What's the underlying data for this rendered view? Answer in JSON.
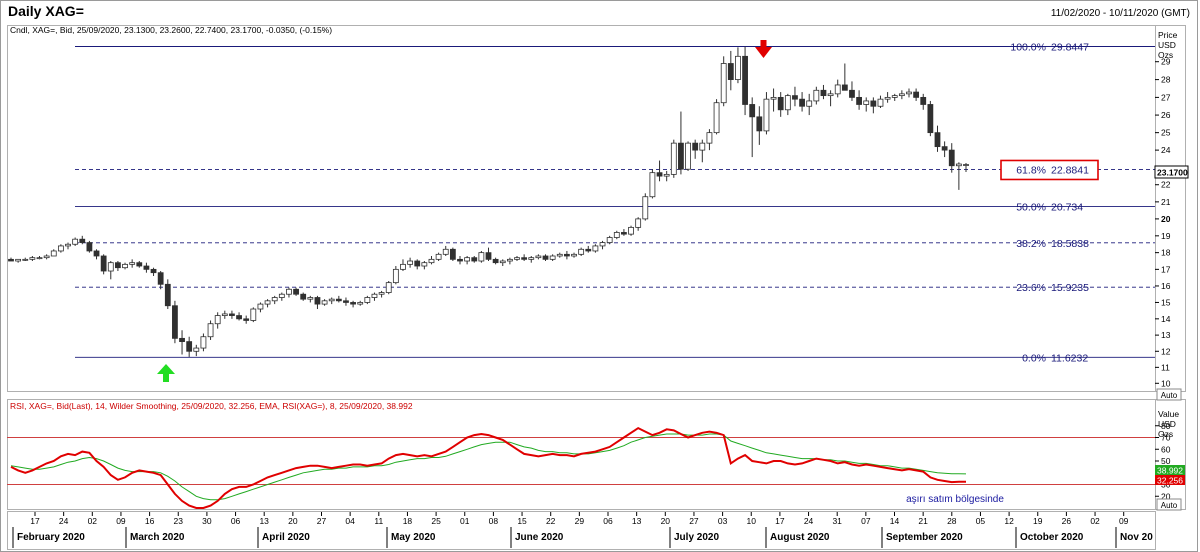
{
  "header": {
    "title": "Daily XAG=",
    "date_range": "11/02/2020 - 10/11/2020 (GMT)"
  },
  "price_panel": {
    "legend": "Cndl, XAG=, Bid, 25/09/2020, 23.1300, 23.2600, 22.7400, 23.1700, -0.0350, (-0.15%)",
    "axis_title": [
      "Price",
      "USD",
      "Ozs"
    ],
    "last_price_label": "23.1700",
    "auto_label": "Auto"
  },
  "rsi_panel": {
    "legend": "RSI, XAG=, Bid(Last), 14, Wilder Smoothing, 25/09/2020, 32.256, EMA, RSI(XAG=), 8, 25/09/2020, 38.992",
    "axis_title": [
      "Value",
      "USD",
      "Ozs"
    ],
    "ema_label": "38.992",
    "rsi_label": "32.256",
    "annotation": "aşırı satım bölgesinde",
    "auto_label": "Auto"
  },
  "colors": {
    "fib_line": "#1a1a7a",
    "candle_up": "#ffffff",
    "candle_down": "#303030",
    "rsi_line": "#e00000",
    "ema_line": "#22aa22",
    "band_line": "#d04040",
    "arrow_down": "#e00000",
    "arrow_up": "#22dd22",
    "highlight_box": "#e00000",
    "text_fib": "#1a1a7a"
  },
  "chart_data": {
    "type": "candlestick",
    "instrument": "XAG=",
    "y_ticks": [
      10,
      11,
      12,
      13,
      14,
      15,
      16,
      17,
      18,
      19,
      20,
      21,
      22,
      24,
      25,
      26,
      27,
      28,
      29
    ],
    "ylim": [
      9.5,
      31
    ],
    "fib_levels": [
      {
        "label": "100.0%",
        "value_label": "29.8447",
        "value": 29.8447,
        "style": "solid",
        "highlight": false
      },
      {
        "label": "61.8%",
        "value_label": "22.8841",
        "value": 22.8841,
        "style": "dashed",
        "highlight": true
      },
      {
        "label": "50.0%",
        "value_label": "20.734",
        "value": 20.734,
        "style": "solid",
        "highlight": false
      },
      {
        "label": "38.2%",
        "value_label": "18.5838",
        "value": 18.5838,
        "style": "dashed",
        "highlight": false
      },
      {
        "label": "23.6%",
        "value_label": "15.9235",
        "value": 15.9235,
        "style": "dashed",
        "highlight": false
      },
      {
        "label": "0.0%",
        "value_label": "11.6232",
        "value": 11.6232,
        "style": "solid",
        "highlight": false
      }
    ],
    "x_day_ticks": [
      "17",
      "24",
      "02",
      "09",
      "16",
      "23",
      "30",
      "06",
      "13",
      "20",
      "27",
      "04",
      "11",
      "18",
      "25",
      "01",
      "08",
      "15",
      "22",
      "29",
      "06",
      "13",
      "20",
      "27",
      "03",
      "10",
      "17",
      "24",
      "31",
      "07",
      "14",
      "21",
      "28",
      "05",
      "12",
      "19",
      "26",
      "02",
      "09"
    ],
    "x_month_labels": [
      "February 2020",
      "March 2020",
      "April 2020",
      "May 2020",
      "June 2020",
      "July 2020",
      "August 2020",
      "September 2020",
      "October 2020",
      "Nov 20"
    ],
    "candles": [
      [
        17.6,
        17.7,
        17.5,
        17.5
      ],
      [
        17.5,
        17.6,
        17.4,
        17.6
      ],
      [
        17.6,
        17.7,
        17.5,
        17.6
      ],
      [
        17.6,
        17.8,
        17.5,
        17.7
      ],
      [
        17.7,
        17.8,
        17.6,
        17.7
      ],
      [
        17.7,
        17.9,
        17.6,
        17.8
      ],
      [
        17.8,
        18.2,
        17.8,
        18.1
      ],
      [
        18.1,
        18.5,
        18.0,
        18.4
      ],
      [
        18.4,
        18.6,
        18.2,
        18.5
      ],
      [
        18.5,
        18.9,
        18.4,
        18.8
      ],
      [
        18.8,
        19.0,
        18.5,
        18.6
      ],
      [
        18.6,
        18.7,
        18.0,
        18.1
      ],
      [
        18.1,
        18.2,
        17.6,
        17.8
      ],
      [
        17.8,
        17.9,
        16.7,
        16.9
      ],
      [
        16.9,
        17.5,
        16.4,
        17.4
      ],
      [
        17.4,
        17.5,
        16.9,
        17.1
      ],
      [
        17.1,
        17.4,
        17.0,
        17.3
      ],
      [
        17.3,
        17.6,
        17.1,
        17.4
      ],
      [
        17.4,
        17.5,
        17.1,
        17.2
      ],
      [
        17.2,
        17.4,
        16.8,
        17.0
      ],
      [
        17.0,
        17.1,
        16.6,
        16.8
      ],
      [
        16.8,
        16.9,
        15.8,
        16.1
      ],
      [
        16.1,
        16.4,
        14.6,
        14.8
      ],
      [
        14.8,
        15.1,
        12.5,
        12.8
      ],
      [
        12.8,
        13.3,
        11.8,
        12.6
      ],
      [
        12.6,
        12.9,
        11.65,
        12.0
      ],
      [
        12.0,
        12.4,
        11.7,
        12.2
      ],
      [
        12.2,
        13.1,
        12.0,
        12.9
      ],
      [
        12.9,
        13.9,
        12.7,
        13.7
      ],
      [
        13.7,
        14.4,
        13.4,
        14.2
      ],
      [
        14.2,
        14.5,
        14.0,
        14.3
      ],
      [
        14.3,
        14.5,
        14.0,
        14.2
      ],
      [
        14.2,
        14.4,
        13.9,
        14.0
      ],
      [
        14.0,
        14.2,
        13.7,
        13.9
      ],
      [
        13.9,
        14.7,
        13.8,
        14.6
      ],
      [
        14.6,
        15.0,
        14.4,
        14.9
      ],
      [
        14.9,
        15.2,
        14.7,
        15.1
      ],
      [
        15.1,
        15.4,
        14.9,
        15.3
      ],
      [
        15.3,
        15.6,
        15.1,
        15.5
      ],
      [
        15.5,
        15.9,
        15.3,
        15.8
      ],
      [
        15.8,
        15.9,
        15.4,
        15.5
      ],
      [
        15.5,
        15.6,
        15.1,
        15.2
      ],
      [
        15.2,
        15.4,
        15.0,
        15.3
      ],
      [
        15.3,
        15.4,
        14.6,
        14.9
      ],
      [
        14.9,
        15.2,
        14.8,
        15.1
      ],
      [
        15.1,
        15.3,
        14.9,
        15.2
      ],
      [
        15.2,
        15.4,
        15.0,
        15.1
      ],
      [
        15.1,
        15.3,
        14.8,
        15.0
      ],
      [
        15.0,
        15.1,
        14.7,
        14.9
      ],
      [
        14.9,
        15.1,
        14.8,
        15.0
      ],
      [
        15.0,
        15.4,
        14.9,
        15.3
      ],
      [
        15.3,
        15.6,
        15.1,
        15.5
      ],
      [
        15.5,
        15.7,
        15.3,
        15.6
      ],
      [
        15.6,
        16.3,
        15.5,
        16.2
      ],
      [
        16.2,
        17.2,
        16.1,
        17.0
      ],
      [
        17.0,
        17.6,
        16.9,
        17.3
      ],
      [
        17.3,
        17.7,
        17.1,
        17.5
      ],
      [
        17.5,
        17.6,
        17.0,
        17.2
      ],
      [
        17.2,
        17.5,
        17.0,
        17.4
      ],
      [
        17.4,
        17.8,
        17.3,
        17.6
      ],
      [
        17.6,
        18.0,
        17.5,
        17.9
      ],
      [
        17.9,
        18.4,
        17.8,
        18.2
      ],
      [
        18.2,
        18.3,
        17.5,
        17.6
      ],
      [
        17.6,
        17.8,
        17.3,
        17.5
      ],
      [
        17.5,
        17.8,
        17.3,
        17.7
      ],
      [
        17.7,
        17.8,
        17.4,
        17.5
      ],
      [
        17.5,
        18.1,
        17.4,
        18.0
      ],
      [
        18.0,
        18.3,
        17.5,
        17.6
      ],
      [
        17.6,
        17.7,
        17.3,
        17.4
      ],
      [
        17.4,
        17.6,
        17.2,
        17.5
      ],
      [
        17.5,
        17.7,
        17.3,
        17.6
      ],
      [
        17.6,
        17.8,
        17.5,
        17.7
      ],
      [
        17.7,
        17.9,
        17.5,
        17.6
      ],
      [
        17.6,
        17.8,
        17.4,
        17.7
      ],
      [
        17.7,
        17.9,
        17.6,
        17.8
      ],
      [
        17.8,
        17.9,
        17.5,
        17.6
      ],
      [
        17.6,
        17.9,
        17.5,
        17.8
      ],
      [
        17.8,
        18.0,
        17.7,
        17.9
      ],
      [
        17.9,
        18.1,
        17.6,
        17.8
      ],
      [
        17.8,
        18.0,
        17.7,
        17.9
      ],
      [
        17.9,
        18.3,
        17.8,
        18.2
      ],
      [
        18.2,
        18.4,
        18.0,
        18.1
      ],
      [
        18.1,
        18.5,
        18.0,
        18.4
      ],
      [
        18.4,
        18.7,
        18.2,
        18.6
      ],
      [
        18.6,
        19.0,
        18.5,
        18.9
      ],
      [
        18.9,
        19.3,
        18.8,
        19.2
      ],
      [
        19.2,
        19.4,
        19.0,
        19.1
      ],
      [
        19.1,
        19.6,
        19.0,
        19.5
      ],
      [
        19.5,
        20.1,
        19.3,
        20.0
      ],
      [
        20.0,
        21.5,
        19.9,
        21.3
      ],
      [
        21.3,
        22.9,
        21.2,
        22.7
      ],
      [
        22.7,
        23.4,
        22.2,
        22.5
      ],
      [
        22.5,
        22.8,
        22.2,
        22.6
      ],
      [
        22.6,
        24.6,
        22.4,
        24.4
      ],
      [
        24.4,
        26.2,
        22.6,
        22.9
      ],
      [
        22.9,
        24.5,
        22.8,
        24.4
      ],
      [
        24.4,
        24.6,
        23.5,
        24.0
      ],
      [
        24.0,
        24.6,
        23.3,
        24.4
      ],
      [
        24.4,
        25.2,
        24.0,
        25.0
      ],
      [
        25.0,
        26.9,
        24.9,
        26.7
      ],
      [
        26.7,
        29.3,
        26.5,
        28.9
      ],
      [
        28.9,
        29.6,
        27.4,
        28.0
      ],
      [
        28.0,
        29.8,
        27.8,
        29.3
      ],
      [
        29.3,
        29.84,
        26.0,
        26.6
      ],
      [
        26.6,
        27.0,
        23.6,
        25.9
      ],
      [
        25.9,
        26.5,
        24.3,
        25.1
      ],
      [
        25.1,
        27.3,
        24.9,
        26.9
      ],
      [
        26.9,
        27.5,
        26.2,
        27.0
      ],
      [
        27.0,
        27.3,
        25.9,
        26.3
      ],
      [
        26.3,
        27.2,
        26.0,
        27.1
      ],
      [
        27.1,
        27.6,
        26.5,
        26.9
      ],
      [
        26.9,
        27.3,
        26.2,
        26.5
      ],
      [
        26.5,
        27.2,
        26.0,
        26.8
      ],
      [
        26.8,
        27.6,
        26.6,
        27.4
      ],
      [
        27.4,
        27.7,
        26.9,
        27.1
      ],
      [
        27.1,
        27.4,
        26.5,
        27.2
      ],
      [
        27.2,
        28.0,
        27.0,
        27.7
      ],
      [
        27.7,
        28.9,
        27.5,
        27.4
      ],
      [
        27.4,
        27.9,
        26.8,
        27.0
      ],
      [
        27.0,
        27.4,
        26.3,
        26.6
      ],
      [
        26.6,
        27.0,
        26.2,
        26.8
      ],
      [
        26.8,
        27.0,
        26.1,
        26.5
      ],
      [
        26.5,
        27.1,
        26.4,
        26.9
      ],
      [
        26.9,
        27.3,
        26.7,
        27.0
      ],
      [
        27.0,
        27.2,
        26.8,
        27.1
      ],
      [
        27.1,
        27.4,
        26.9,
        27.2
      ],
      [
        27.2,
        27.5,
        27.0,
        27.3
      ],
      [
        27.3,
        27.5,
        26.8,
        27.0
      ],
      [
        27.0,
        27.2,
        26.3,
        26.6
      ],
      [
        26.6,
        26.8,
        24.8,
        25.0
      ],
      [
        25.0,
        25.4,
        23.9,
        24.2
      ],
      [
        24.2,
        24.5,
        23.6,
        24.0
      ],
      [
        24.0,
        24.4,
        22.7,
        23.1
      ],
      [
        23.1,
        23.3,
        21.7,
        23.2
      ],
      [
        23.13,
        23.26,
        22.74,
        23.17
      ]
    ],
    "rsi": [
      45,
      42,
      40,
      42,
      45,
      48,
      50,
      54,
      56,
      55,
      58,
      57,
      50,
      45,
      38,
      34,
      36,
      40,
      42,
      41,
      40,
      38,
      30,
      22,
      16,
      12,
      10,
      10,
      12,
      16,
      22,
      26,
      28,
      28,
      30,
      33,
      36,
      38,
      40,
      42,
      44,
      45,
      46,
      46,
      45,
      44,
      45,
      46,
      47,
      47,
      46,
      47,
      48,
      52,
      55,
      56,
      55,
      54,
      55,
      54,
      56,
      58,
      62,
      66,
      70,
      72,
      73,
      72,
      70,
      68,
      64,
      60,
      56,
      55,
      54,
      55,
      56,
      55,
      55,
      54,
      56,
      57,
      58,
      60,
      62,
      66,
      70,
      74,
      78,
      75,
      72,
      74,
      77,
      76,
      73,
      70,
      72,
      74,
      75,
      74,
      72,
      48,
      52,
      55,
      50,
      49,
      48,
      50,
      50,
      48,
      47,
      48,
      50,
      52,
      51,
      50,
      48,
      49,
      47,
      46,
      47,
      46,
      45,
      44,
      43,
      42,
      43,
      42,
      41,
      36,
      34,
      33,
      32,
      32.3,
      32.256
    ],
    "ema": [
      46,
      45,
      44,
      43,
      43,
      44,
      45,
      47,
      49,
      50,
      52,
      53,
      52,
      50,
      47,
      44,
      42,
      41,
      41,
      41,
      41,
      40,
      37,
      33,
      28,
      24,
      20,
      18,
      17,
      17,
      18,
      20,
      22,
      24,
      26,
      28,
      30,
      32,
      34,
      36,
      38,
      40,
      41,
      42,
      43,
      43,
      44,
      44,
      45,
      45,
      45,
      46,
      46,
      47,
      49,
      50,
      51,
      52,
      52,
      53,
      53,
      54,
      56,
      58,
      60,
      62,
      64,
      65,
      66,
      66,
      66,
      64,
      62,
      61,
      59,
      58,
      58,
      57,
      57,
      56,
      56,
      56,
      57,
      58,
      59,
      61,
      63,
      66,
      68,
      70,
      71,
      72,
      73,
      73,
      73,
      72,
      72,
      72,
      73,
      73,
      72,
      67,
      65,
      63,
      61,
      59,
      57,
      56,
      55,
      54,
      53,
      52,
      52,
      52,
      51,
      51,
      50,
      50,
      49,
      48,
      48,
      47,
      46,
      46,
      45,
      44,
      44,
      43,
      42,
      41,
      40,
      39.5,
      39.2,
      39.1,
      38.992
    ],
    "rsi_bands": [
      30,
      70
    ],
    "rsi_ylim": [
      10,
      90
    ],
    "rsi_ticks": [
      20,
      30,
      50,
      60,
      70,
      80
    ]
  }
}
